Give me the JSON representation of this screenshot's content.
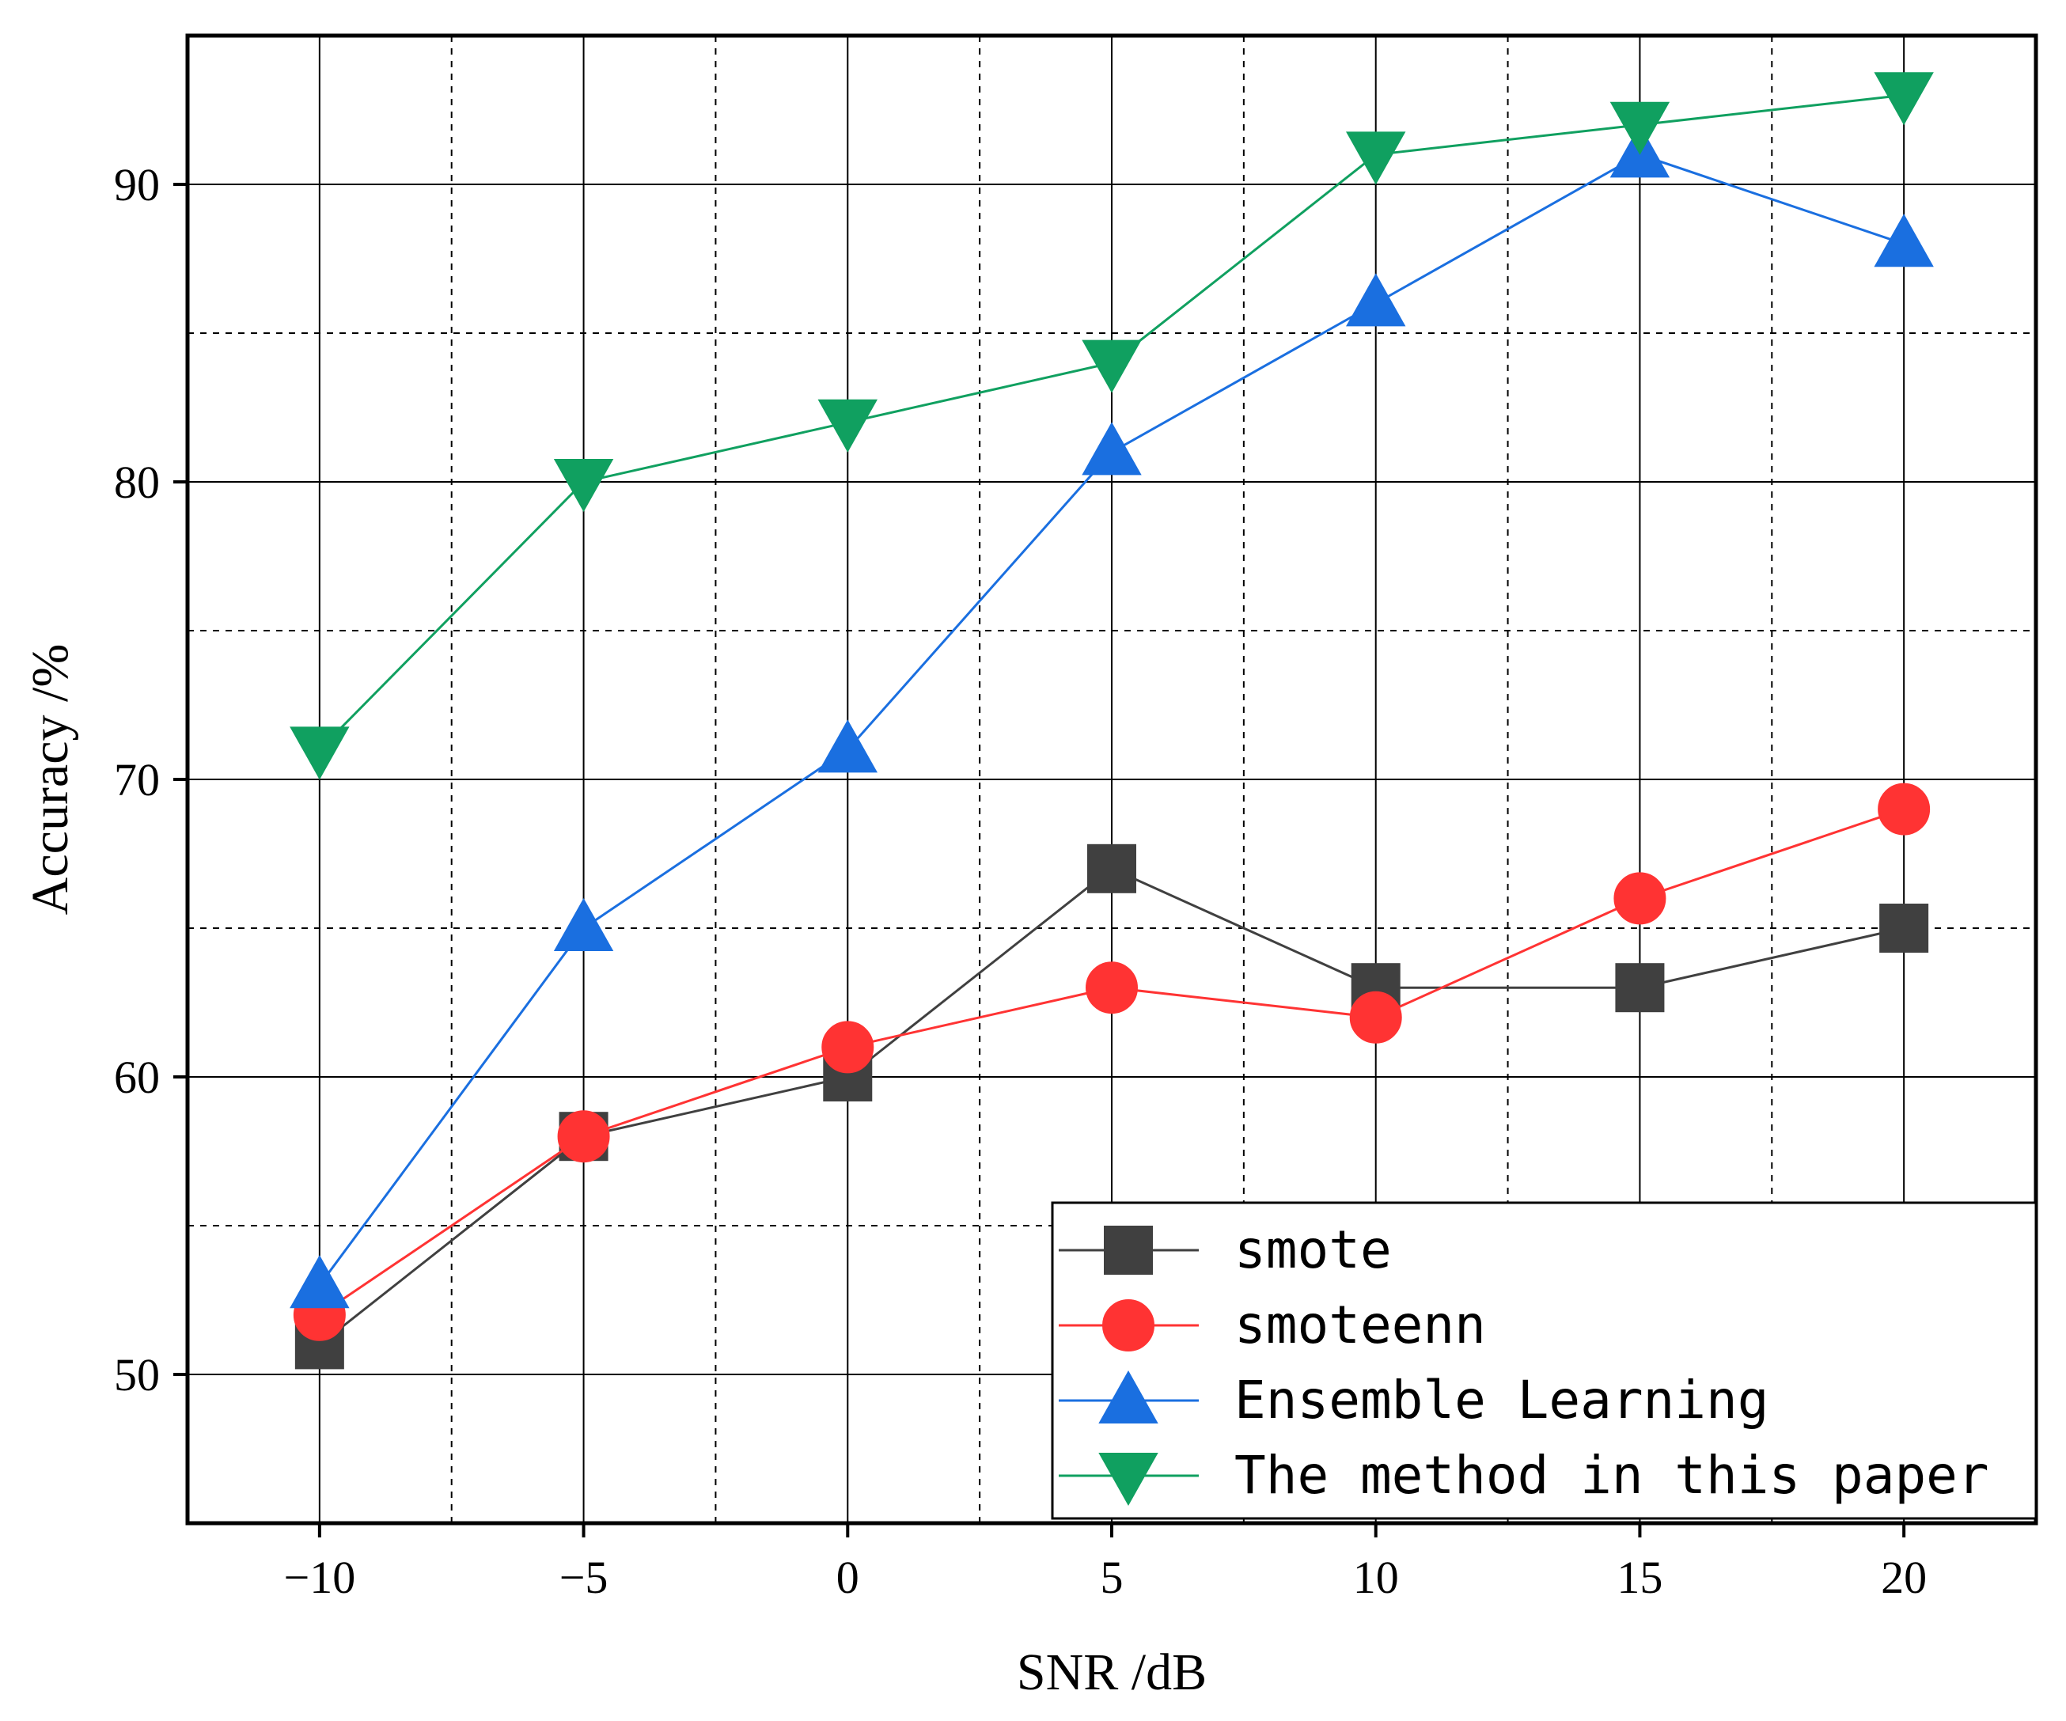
{
  "chart_data": {
    "type": "line",
    "xlabel": "SNR /dB",
    "ylabel": "Accuracy /%",
    "x": [
      -10,
      -5,
      0,
      5,
      10,
      15,
      20
    ],
    "xlim": [
      -12.5,
      22.5
    ],
    "ylim": [
      45,
      95
    ],
    "xticks": [
      -10,
      -5,
      0,
      5,
      10,
      15,
      20
    ],
    "xtick_labels": [
      "−10",
      "−5",
      "0",
      "5",
      "10",
      "15",
      "20"
    ],
    "yticks": [
      50,
      60,
      70,
      80,
      90
    ],
    "ytick_labels": [
      "50",
      "60",
      "70",
      "80",
      "90"
    ],
    "grid": "major solid, minor dashed",
    "legend_position": "bottom-right",
    "series": [
      {
        "name": "smote",
        "color": "#404040",
        "marker": "square",
        "values": [
          51,
          58,
          60,
          67,
          63,
          63,
          65
        ]
      },
      {
        "name": "smoteenn",
        "color": "#ff3333",
        "marker": "circle",
        "values": [
          52,
          58,
          61,
          63,
          62,
          66,
          69
        ]
      },
      {
        "name": "Ensemble Learning",
        "color": "#1a6fe0",
        "marker": "triangle-up",
        "values": [
          53,
          65,
          71,
          81,
          86,
          91,
          88
        ]
      },
      {
        "name": "The method in this paper",
        "color": "#10a060",
        "marker": "triangle-down",
        "values": [
          71,
          80,
          82,
          84,
          91,
          92,
          93
        ]
      }
    ]
  }
}
